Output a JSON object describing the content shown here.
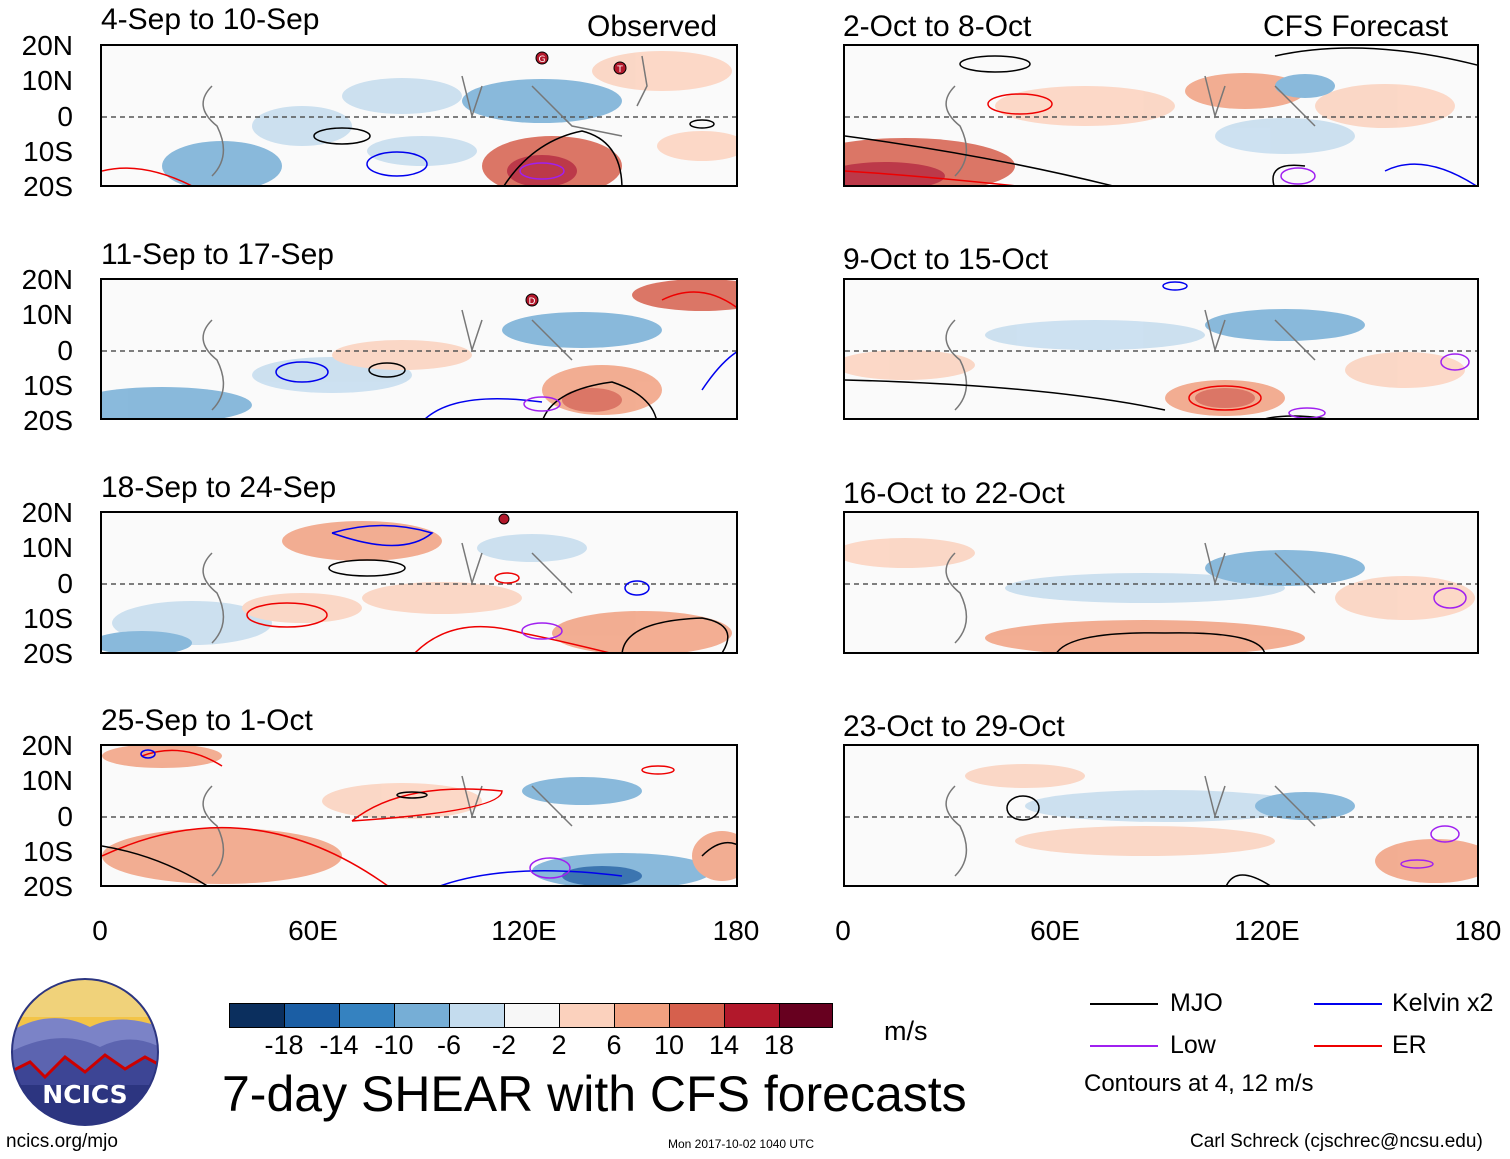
{
  "figure": {
    "main_title": "7-day SHEAR with CFS forecasts",
    "observed_label": "Observed",
    "forecast_label": "CFS Forecast",
    "website": "ncics.org/mjo",
    "timestamp": "Mon 2017-10-02 1040 UTC",
    "author": "Carl Schreck (cjschrec@ncsu.edu)",
    "logo_text": "NCICS"
  },
  "observed_panels": [
    {
      "title": "4-Sep to 10-Sep"
    },
    {
      "title": "11-Sep to 17-Sep"
    },
    {
      "title": "18-Sep to 24-Sep"
    },
    {
      "title": "25-Sep to 1-Oct"
    }
  ],
  "forecast_panels": [
    {
      "title": "2-Oct to 8-Oct"
    },
    {
      "title": "9-Oct to 15-Oct"
    },
    {
      "title": "16-Oct to 22-Oct"
    },
    {
      "title": "23-Oct to 29-Oct"
    }
  ],
  "axes": {
    "lat_labels": [
      "20N",
      "10N",
      "0",
      "10S",
      "20S"
    ],
    "lon_labels_left": [
      "0",
      "60E",
      "120E",
      "180"
    ],
    "lon_labels_right": [
      "0",
      "60E",
      "120E",
      "180"
    ]
  },
  "colorbar": {
    "units": "m/s",
    "labels": [
      "-18",
      "-14",
      "-10",
      "-6",
      "-2",
      "2",
      "6",
      "10",
      "14",
      "18"
    ],
    "colors": [
      "#0b2f5e",
      "#1b5ea4",
      "#3582c0",
      "#76aed6",
      "#c4dcee",
      "#f7f7f7",
      "#fbd1bd",
      "#f1a080",
      "#d6604d",
      "#b2182b",
      "#67001f"
    ]
  },
  "legend": {
    "items": [
      {
        "label": "MJO",
        "color": "#000000"
      },
      {
        "label": "Kelvin x2",
        "color": "#0000ee"
      },
      {
        "label": "Low",
        "color": "#a020f0"
      },
      {
        "label": "ER",
        "color": "#ee0000"
      }
    ],
    "note": "Contours at 4, 12 m/s"
  },
  "storm_markers": [
    "G",
    "T",
    "D"
  ]
}
